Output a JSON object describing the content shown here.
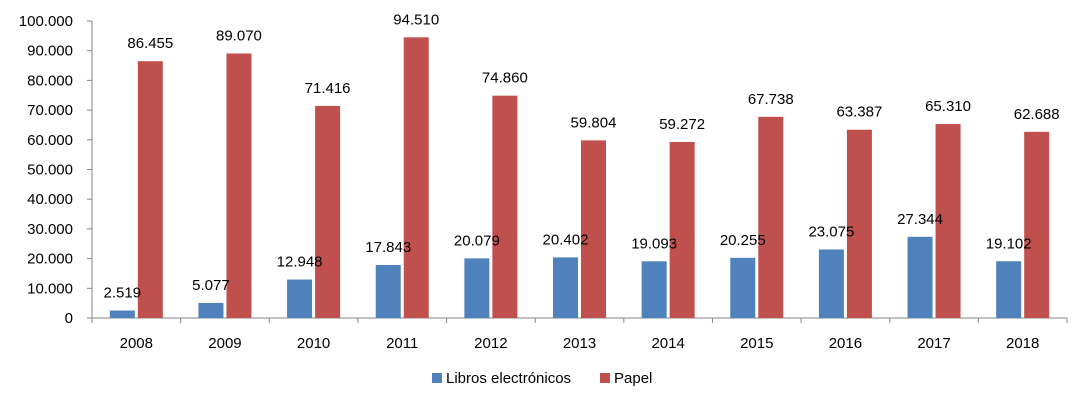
{
  "chart_data": {
    "type": "bar",
    "categories": [
      "2008",
      "2009",
      "2010",
      "2011",
      "2012",
      "2013",
      "2014",
      "2015",
      "2016",
      "2017",
      "2018"
    ],
    "series": [
      {
        "name": "Libros electrónicos",
        "color": "#4F81BD",
        "values": [
          2519,
          5077,
          12948,
          17843,
          20079,
          20402,
          19093,
          20255,
          23075,
          27344,
          19102
        ],
        "labels": [
          "2.519",
          "5.077",
          "12.948",
          "17.843",
          "20.079",
          "20.402",
          "19.093",
          "20.255",
          "23.075",
          "27.344",
          "19.102"
        ]
      },
      {
        "name": "Papel",
        "color": "#C0504D",
        "values": [
          86455,
          89070,
          71416,
          94510,
          74860,
          59804,
          59272,
          67738,
          63387,
          65310,
          62688
        ],
        "labels": [
          "86.455",
          "89.070",
          "71.416",
          "94.510",
          "74.860",
          "59.804",
          "59.272",
          "67.738",
          "63.387",
          "65.310",
          "62.688"
        ]
      }
    ],
    "ylim": [
      0,
      100000
    ],
    "y_ticks": [
      0,
      10000,
      20000,
      30000,
      40000,
      50000,
      60000,
      70000,
      80000,
      90000,
      100000
    ],
    "y_tick_labels": [
      "0",
      "10.000",
      "20.000",
      "30.000",
      "40.000",
      "50.000",
      "60.000",
      "70.000",
      "80.000",
      "90.000",
      "100.000"
    ],
    "grid": false,
    "legend_position": "bottom",
    "title": "",
    "xlabel": "",
    "ylabel": ""
  }
}
